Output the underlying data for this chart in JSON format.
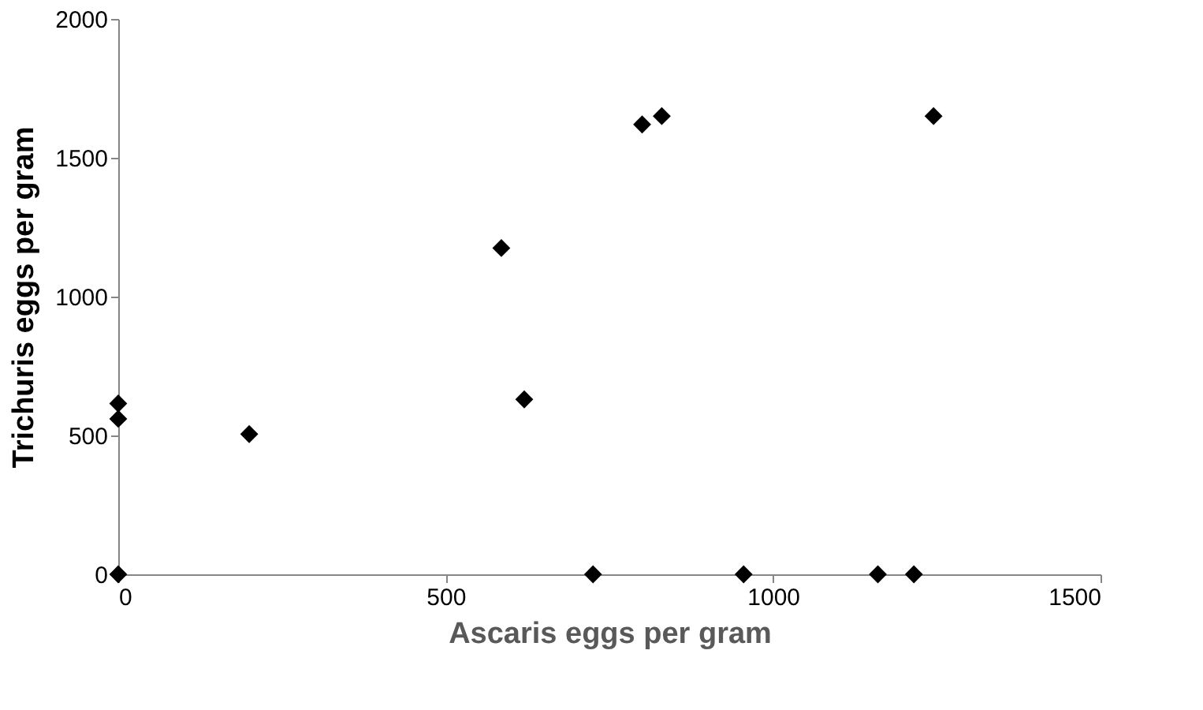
{
  "chart_data": {
    "type": "scatter",
    "xlabel": "Ascaris eggs per gram",
    "ylabel": "Trichuris eggs per gram",
    "x": [
      0,
      0,
      0,
      200,
      585,
      620,
      725,
      800,
      830,
      955,
      1160,
      1215,
      1245
    ],
    "series": [
      {
        "color": "#000000",
        "values": [
          615,
          560,
          0,
          505,
          1175,
          630,
          0,
          1620,
          1650,
          0,
          0,
          0,
          1650
        ]
      }
    ],
    "xlim": [
      0,
      1500
    ],
    "xticks": [
      0,
      500,
      1000,
      1500
    ],
    "ylim": [
      0,
      2000
    ],
    "yticks": [
      0,
      500,
      1000,
      1500,
      2000
    ],
    "marker": "diamond",
    "grid": false
  }
}
